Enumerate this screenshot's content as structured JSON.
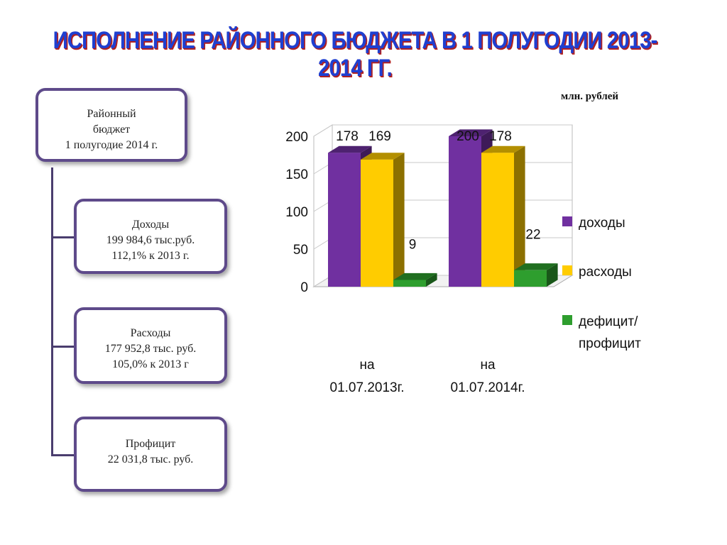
{
  "title": "ИСПОЛНЕНИЕ РАЙОННОГО БЮДЖЕТА В 1 ПОЛУГОДИИ 2013-2014 ГГ.",
  "units": "млн. рублей",
  "boxes": {
    "top": {
      "line1": "Районный",
      "line2": "бюджет",
      "line3": "1 полугодие 2014 г."
    },
    "income": {
      "line1": "Доходы",
      "line2": "199 984,6 тыс.руб.",
      "line3": "112,1% к 2013 г."
    },
    "expense": {
      "line1": "Расходы",
      "line2": "177 952,8 тыс. руб.",
      "line3": "105,0% к 2013 г"
    },
    "surplus": {
      "line1": "Профицит",
      "line2": "22 031,8 тыс. руб."
    }
  },
  "colors": {
    "income": "#7030a0",
    "expense": "#ffcc00",
    "balance": "#2e9e2e"
  },
  "chart_data": {
    "type": "bar",
    "categories": [
      [
        "на",
        "01.07.2013г."
      ],
      [
        "на",
        "01.07.2014г."
      ]
    ],
    "series": [
      {
        "name": "доходы",
        "values": [
          178,
          200
        ]
      },
      {
        "name": "расходы",
        "values": [
          169,
          178
        ]
      },
      {
        "name_lines": [
          "дефицит/",
          "профицит"
        ],
        "values": [
          9,
          22
        ]
      }
    ],
    "ylim": [
      0,
      200
    ],
    "yticks": [
      0,
      50,
      100,
      150,
      200
    ],
    "grid": true,
    "legend": "right"
  }
}
